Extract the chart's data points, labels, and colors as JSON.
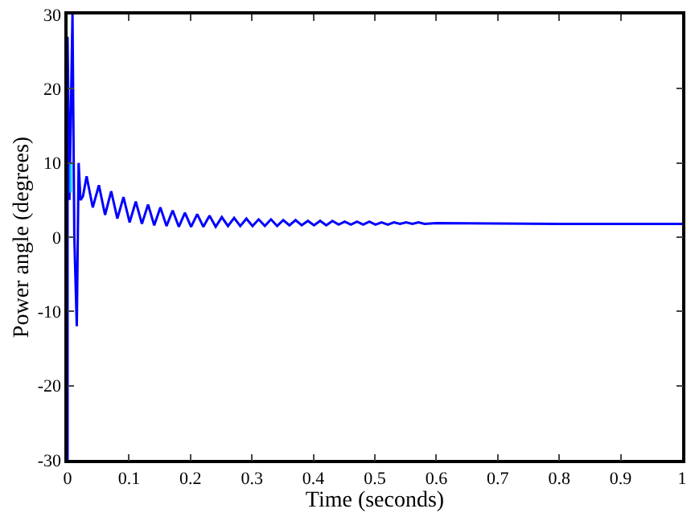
{
  "chart_data": {
    "type": "line",
    "xlabel": "Time (seconds)",
    "ylabel": "Power angle (degrees)",
    "xlim": [
      0,
      1
    ],
    "xticks": [
      0,
      0.1,
      0.2,
      0.3,
      0.4,
      0.5,
      0.6,
      0.7,
      0.8,
      0.9,
      1
    ],
    "ylim": [
      -30,
      30
    ],
    "yticks": [
      -30,
      -20,
      -10,
      0,
      10,
      20,
      30
    ],
    "marker": "none",
    "line_style": "solid",
    "series": [
      {
        "color": "#0000ff",
        "x": [
          0,
          0,
          0.003,
          0.008,
          0.011,
          0.015,
          0.018,
          0.021,
          0.025,
          0.031,
          0.041,
          0.051,
          0.061,
          0.071,
          0.081,
          0.091,
          0.101,
          0.111,
          0.121,
          0.131,
          0.141,
          0.151,
          0.161,
          0.171,
          0.181,
          0.191,
          0.201,
          0.211,
          0.221,
          0.231,
          0.241,
          0.251,
          0.261,
          0.271,
          0.281,
          0.291,
          0.301,
          0.311,
          0.321,
          0.331,
          0.341,
          0.351,
          0.361,
          0.371,
          0.381,
          0.391,
          0.401,
          0.411,
          0.421,
          0.431,
          0.441,
          0.451,
          0.461,
          0.471,
          0.481,
          0.491,
          0.501,
          0.511,
          0.521,
          0.531,
          0.541,
          0.551,
          0.561,
          0.571,
          0.581,
          0.6,
          0.8,
          1
        ],
        "values": [
          -30,
          27,
          5,
          30,
          0,
          -12,
          10,
          5,
          5.5,
          8.2,
          4.0,
          7.0,
          3.0,
          6.2,
          2.5,
          5.4,
          2.0,
          4.8,
          1.8,
          4.4,
          1.6,
          4.0,
          1.5,
          3.6,
          1.4,
          3.3,
          1.4,
          3.1,
          1.4,
          2.9,
          1.4,
          2.7,
          1.5,
          2.6,
          1.5,
          2.5,
          1.5,
          2.4,
          1.5,
          2.4,
          1.5,
          2.3,
          1.6,
          2.3,
          1.6,
          2.2,
          1.6,
          2.2,
          1.6,
          2.2,
          1.7,
          2.1,
          1.7,
          2.1,
          1.7,
          2.1,
          1.7,
          2.0,
          1.7,
          2.0,
          1.8,
          2.0,
          1.8,
          2.0,
          1.8,
          1.9,
          1.8,
          1.8
        ]
      },
      {
        "color": "#00ccff",
        "x": [
          0.005,
          0.005
        ],
        "values": [
          6,
          10
        ]
      }
    ]
  }
}
